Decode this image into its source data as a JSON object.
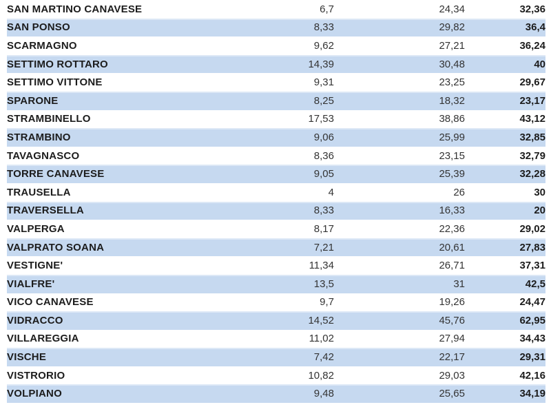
{
  "colors": {
    "row_alternate_fill": "#c6d9f0",
    "row_alternate_top_edge": "#dde8f6",
    "name_text": "#1c1c1c",
    "number_text": "#333333",
    "total_text": "#1c1c1c",
    "background": "#ffffff"
  },
  "table": {
    "decimal_separator": ",",
    "rows": [
      {
        "name": "SAN MARTINO CANAVESE",
        "v1": "6,7",
        "v2": "24,34",
        "v3": "32,36"
      },
      {
        "name": "SAN PONSO",
        "v1": "8,33",
        "v2": "29,82",
        "v3": "36,4"
      },
      {
        "name": "SCARMAGNO",
        "v1": "9,62",
        "v2": "27,21",
        "v3": "36,24"
      },
      {
        "name": "SETTIMO ROTTARO",
        "v1": "14,39",
        "v2": "30,48",
        "v3": "40"
      },
      {
        "name": "SETTIMO VITTONE",
        "v1": "9,31",
        "v2": "23,25",
        "v3": "29,67"
      },
      {
        "name": "SPARONE",
        "v1": "8,25",
        "v2": "18,32",
        "v3": "23,17"
      },
      {
        "name": "STRAMBINELLO",
        "v1": "17,53",
        "v2": "38,86",
        "v3": "43,12"
      },
      {
        "name": "STRAMBINO",
        "v1": "9,06",
        "v2": "25,99",
        "v3": "32,85"
      },
      {
        "name": "TAVAGNASCO",
        "v1": "8,36",
        "v2": "23,15",
        "v3": "32,79"
      },
      {
        "name": "TORRE CANAVESE",
        "v1": "9,05",
        "v2": "25,39",
        "v3": "32,28"
      },
      {
        "name": "TRAUSELLA",
        "v1": "4",
        "v2": "26",
        "v3": "30"
      },
      {
        "name": "TRAVERSELLA",
        "v1": "8,33",
        "v2": "16,33",
        "v3": "20"
      },
      {
        "name": "VALPERGA",
        "v1": "8,17",
        "v2": "22,36",
        "v3": "29,02"
      },
      {
        "name": "VALPRATO SOANA",
        "v1": "7,21",
        "v2": "20,61",
        "v3": "27,83"
      },
      {
        "name": "VESTIGNE'",
        "v1": "11,34",
        "v2": "26,71",
        "v3": "37,31"
      },
      {
        "name": "VIALFRE'",
        "v1": "13,5",
        "v2": "31",
        "v3": "42,5"
      },
      {
        "name": "VICO CANAVESE",
        "v1": "9,7",
        "v2": "19,26",
        "v3": "24,47"
      },
      {
        "name": "VIDRACCO",
        "v1": "14,52",
        "v2": "45,76",
        "v3": "62,95"
      },
      {
        "name": "VILLAREGGIA",
        "v1": "11,02",
        "v2": "27,94",
        "v3": "34,43"
      },
      {
        "name": "VISCHE",
        "v1": "7,42",
        "v2": "22,17",
        "v3": "29,31"
      },
      {
        "name": "VISTRORIO",
        "v1": "10,82",
        "v2": "29,03",
        "v3": "42,16"
      },
      {
        "name": "VOLPIANO",
        "v1": "9,48",
        "v2": "25,65",
        "v3": "34,19"
      }
    ]
  }
}
